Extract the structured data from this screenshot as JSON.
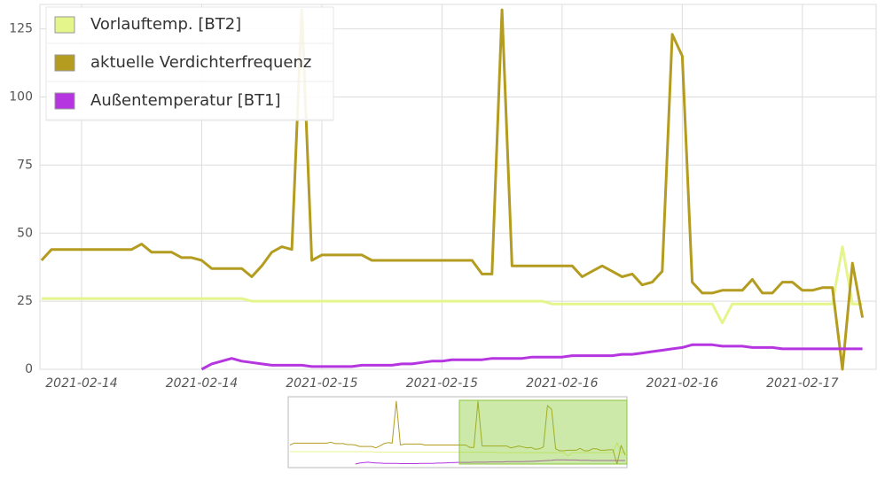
{
  "chart_data": {
    "type": "line",
    "categories": [
      null,
      null,
      null,
      null,
      "2021-02-14",
      null,
      null,
      null,
      null,
      null,
      null,
      null,
      null,
      null,
      null,
      null,
      "2021-02-14",
      null,
      null,
      null,
      null,
      null,
      null,
      null,
      null,
      null,
      null,
      null,
      "2021-02-15",
      null,
      null,
      null,
      null,
      null,
      null,
      null,
      null,
      null,
      null,
      null,
      "2021-02-15",
      null,
      null,
      null,
      null,
      null,
      null,
      null,
      null,
      null,
      null,
      null,
      "2021-02-16",
      null,
      null,
      null,
      null,
      null,
      null,
      null,
      null,
      null,
      null,
      null,
      "2021-02-16",
      null,
      null,
      null,
      null,
      null,
      null,
      null,
      null,
      null,
      null,
      null,
      "2021-02-17",
      null,
      null,
      null,
      null,
      null,
      null
    ],
    "series": [
      {
        "name": "Vorlauftemp. [BT2]",
        "color": "#e4f58c",
        "values": [
          26,
          26,
          26,
          26,
          26,
          26,
          26,
          26,
          26,
          26,
          26,
          26,
          26,
          26,
          26,
          26,
          26,
          26,
          26,
          26,
          26,
          25,
          25,
          25,
          25,
          25,
          25,
          25,
          25,
          25,
          25,
          25,
          25,
          25,
          25,
          25,
          25,
          25,
          25,
          25,
          25,
          25,
          25,
          25,
          25,
          25,
          25,
          25,
          25,
          25,
          25,
          24,
          24,
          24,
          24,
          24,
          24,
          24,
          24,
          24,
          24,
          24,
          24,
          24,
          24,
          24,
          24,
          24,
          17,
          24,
          24,
          24,
          24,
          24,
          24,
          24,
          24,
          24,
          24,
          24,
          45,
          24,
          24
        ]
      },
      {
        "name": "aktuelle Verdichterfrequenz",
        "color": "#b39c1f",
        "values": [
          40,
          44,
          44,
          44,
          44,
          44,
          44,
          44,
          44,
          44,
          46,
          43,
          43,
          43,
          41,
          41,
          40,
          37,
          37,
          37,
          37,
          34,
          38,
          43,
          45,
          44,
          132,
          40,
          42,
          42,
          42,
          42,
          42,
          40,
          40,
          40,
          40,
          40,
          40,
          40,
          40,
          40,
          40,
          40,
          35,
          35,
          132,
          38,
          38,
          38,
          38,
          38,
          38,
          38,
          34,
          36,
          38,
          36,
          34,
          35,
          31,
          32,
          36,
          123,
          115,
          32,
          28,
          28,
          29,
          29,
          29,
          33,
          28,
          28,
          32,
          32,
          29,
          29,
          30,
          30,
          0,
          39,
          19
        ]
      },
      {
        "name": "Außentemperatur [BT1]",
        "color": "#b535e0",
        "values": [
          null,
          null,
          null,
          null,
          null,
          null,
          null,
          null,
          null,
          null,
          null,
          null,
          null,
          null,
          null,
          null,
          0,
          2,
          3,
          4,
          3,
          2.5,
          2,
          1.5,
          1.5,
          1.5,
          1.5,
          1,
          1,
          1,
          1,
          1,
          1.5,
          1.5,
          1.5,
          1.5,
          2,
          2,
          2.5,
          3,
          3,
          3.5,
          3.5,
          3.5,
          3.5,
          4,
          4,
          4,
          4,
          4.5,
          4.5,
          4.5,
          4.5,
          5,
          5,
          5,
          5,
          5,
          5.5,
          5.5,
          6,
          6.5,
          7,
          7.5,
          8,
          9,
          9,
          9,
          8.5,
          8.5,
          8.5,
          8,
          8,
          8,
          7.5,
          7.5,
          7.5,
          7.5,
          7.5,
          7.5,
          7.5,
          7.5,
          7.5
        ]
      }
    ],
    "ylim": [
      0,
      134
    ],
    "yticks": [
      0,
      25,
      50,
      75,
      100,
      125
    ],
    "grid": true,
    "legend": "top-left"
  }
}
